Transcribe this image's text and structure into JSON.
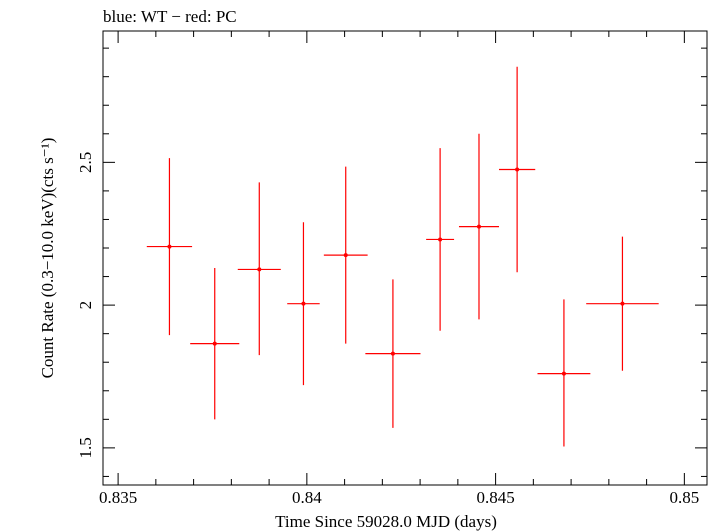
{
  "chart_data": {
    "type": "scatter",
    "title": "blue: WT − red: PC",
    "xlabel": "Time Since 59028.0 MJD (days)",
    "ylabel": "Count Rate (0.3−10.0 keV)(cts s⁻¹)",
    "xlim": [
      0.8346,
      0.8506
    ],
    "ylim": [
      1.37,
      2.96
    ],
    "x_ticks": [
      0.835,
      0.84,
      0.845,
      0.85
    ],
    "x_tick_labels": [
      "0.835",
      "0.84",
      "0.845",
      "0.85"
    ],
    "y_ticks": [
      1.5,
      2.0,
      2.5
    ],
    "y_tick_labels": [
      "1.5",
      "2",
      "2.5"
    ],
    "grid": false,
    "series": [
      {
        "color": "#ff0000",
        "points": [
          {
            "x": 0.83636,
            "y": 2.205,
            "xerr": 0.0006,
            "ylo": 1.895,
            "yhi": 2.515
          },
          {
            "x": 0.83756,
            "y": 1.865,
            "xerr": 0.00065,
            "ylo": 1.6,
            "yhi": 2.13
          },
          {
            "x": 0.83874,
            "y": 2.125,
            "xerr": 0.00057,
            "ylo": 1.825,
            "yhi": 2.43
          },
          {
            "x": 0.83991,
            "y": 2.005,
            "xerr": 0.00043,
            "ylo": 1.72,
            "yhi": 2.29
          },
          {
            "x": 0.84103,
            "y": 2.175,
            "xerr": 0.00058,
            "ylo": 1.865,
            "yhi": 2.485
          },
          {
            "x": 0.84228,
            "y": 1.83,
            "xerr": 0.00073,
            "ylo": 1.57,
            "yhi": 2.09
          },
          {
            "x": 0.84353,
            "y": 2.23,
            "xerr": 0.00037,
            "ylo": 1.91,
            "yhi": 2.55
          },
          {
            "x": 0.84456,
            "y": 2.275,
            "xerr": 0.00053,
            "ylo": 1.95,
            "yhi": 2.6
          },
          {
            "x": 0.84557,
            "y": 2.475,
            "xerr": 0.00048,
            "ylo": 2.115,
            "yhi": 2.835
          },
          {
            "x": 0.84681,
            "y": 1.76,
            "xerr": 0.0007,
            "ylo": 1.505,
            "yhi": 2.02
          },
          {
            "x": 0.84836,
            "y": 2.005,
            "xerr": 0.00096,
            "ylo": 1.77,
            "yhi": 2.24
          }
        ]
      }
    ]
  }
}
